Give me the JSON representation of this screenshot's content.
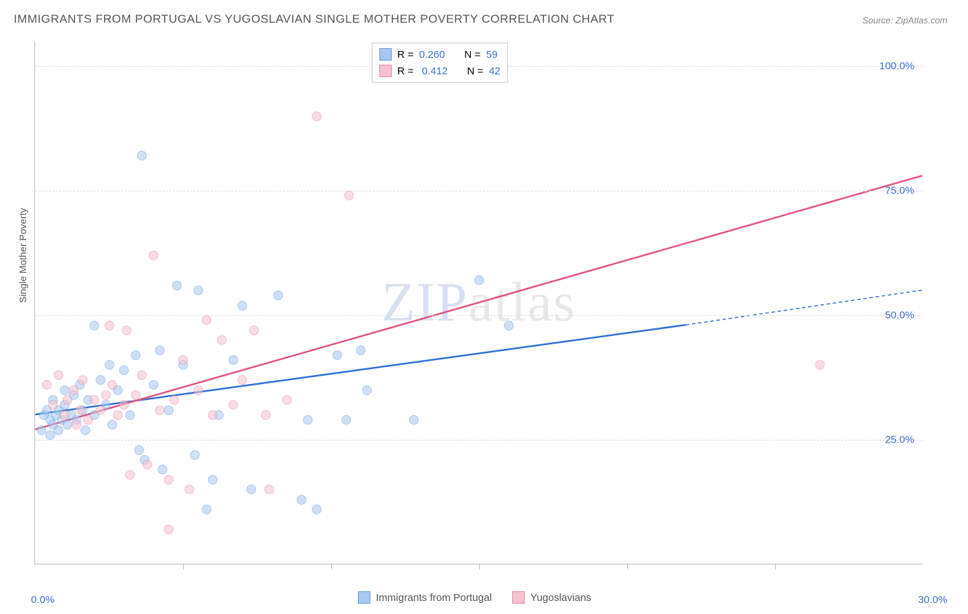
{
  "title": "IMMIGRANTS FROM PORTUGAL VS YUGOSLAVIAN SINGLE MOTHER POVERTY CORRELATION CHART",
  "source": "Source: ZipAtlas.com",
  "ylabel": "Single Mother Poverty",
  "watermark_a": "ZIP",
  "watermark_b": "atlas",
  "chart": {
    "type": "scatter",
    "xlim": [
      0,
      30
    ],
    "ylim": [
      0,
      105
    ],
    "xtick_labels": [
      "0.0%",
      "30.0%"
    ],
    "xtick_pos": [
      0,
      30
    ],
    "ytick_labels": [
      "25.0%",
      "50.0%",
      "75.0%",
      "100.0%"
    ],
    "ytick_pos": [
      25,
      50,
      75,
      100
    ],
    "xticks_minor": [
      5,
      10,
      15,
      20,
      25
    ],
    "grid_color": "#dddddd",
    "axis_color": "#bbbbbb",
    "background_color": "#ffffff",
    "series": [
      {
        "name": "Immigrants from Portugal",
        "color_fill": "#a8c8f0",
        "color_stroke": "#6a9ee0",
        "line_color": "#2f6fd6",
        "marker_radius": 7,
        "marker_opacity": 0.55,
        "R": "0.260",
        "N": "59",
        "trend": {
          "x1": 0,
          "y1": 30,
          "x2": 22,
          "y2": 48,
          "x2_ext": 30,
          "y2_ext": 55
        },
        "points": [
          [
            0.2,
            27
          ],
          [
            0.3,
            30
          ],
          [
            0.4,
            31
          ],
          [
            0.5,
            26
          ],
          [
            0.5,
            29
          ],
          [
            0.6,
            28
          ],
          [
            0.6,
            33
          ],
          [
            0.7,
            30
          ],
          [
            0.8,
            27
          ],
          [
            0.8,
            31
          ],
          [
            0.9,
            29
          ],
          [
            1.0,
            32
          ],
          [
            1.0,
            35
          ],
          [
            1.1,
            28
          ],
          [
            1.2,
            30
          ],
          [
            1.3,
            34
          ],
          [
            1.4,
            29
          ],
          [
            1.5,
            36
          ],
          [
            1.6,
            31
          ],
          [
            1.7,
            27
          ],
          [
            1.8,
            33
          ],
          [
            2.0,
            30
          ],
          [
            2.2,
            37
          ],
          [
            2.4,
            32
          ],
          [
            2.5,
            40
          ],
          [
            2.6,
            28
          ],
          [
            2.8,
            35
          ],
          [
            2.0,
            48
          ],
          [
            3.0,
            39
          ],
          [
            3.2,
            30
          ],
          [
            3.4,
            42
          ],
          [
            3.5,
            23
          ],
          [
            3.7,
            21
          ],
          [
            4.0,
            36
          ],
          [
            4.2,
            43
          ],
          [
            4.3,
            19
          ],
          [
            4.5,
            31
          ],
          [
            4.8,
            56
          ],
          [
            5.0,
            40
          ],
          [
            5.4,
            22
          ],
          [
            5.5,
            55
          ],
          [
            5.8,
            11
          ],
          [
            6.0,
            17
          ],
          [
            6.2,
            30
          ],
          [
            6.7,
            41
          ],
          [
            7.0,
            52
          ],
          [
            7.3,
            15
          ],
          [
            8.2,
            54
          ],
          [
            9.0,
            13
          ],
          [
            9.2,
            29
          ],
          [
            9.5,
            11
          ],
          [
            10.2,
            42
          ],
          [
            10.5,
            29
          ],
          [
            11.0,
            43
          ],
          [
            11.2,
            35
          ],
          [
            12.8,
            29
          ],
          [
            15.0,
            57
          ],
          [
            16.0,
            48
          ],
          [
            3.6,
            82
          ]
        ]
      },
      {
        "name": "Yugoslavians",
        "color_fill": "#f5c2cf",
        "color_stroke": "#e88aa5",
        "line_color": "#e05580",
        "marker_radius": 7,
        "marker_opacity": 0.55,
        "R": "0.412",
        "N": "42",
        "trend": {
          "x1": 0,
          "y1": 27,
          "x2": 30,
          "y2": 78,
          "x2_ext": 30,
          "y2_ext": 78
        },
        "points": [
          [
            0.4,
            36
          ],
          [
            0.6,
            32
          ],
          [
            0.8,
            38
          ],
          [
            1.0,
            30
          ],
          [
            1.1,
            33
          ],
          [
            1.3,
            35
          ],
          [
            1.5,
            31
          ],
          [
            1.6,
            37
          ],
          [
            1.8,
            29
          ],
          [
            2.0,
            33
          ],
          [
            2.2,
            31
          ],
          [
            2.4,
            34
          ],
          [
            2.6,
            36
          ],
          [
            2.8,
            30
          ],
          [
            3.0,
            32
          ],
          [
            3.2,
            18
          ],
          [
            3.4,
            34
          ],
          [
            3.6,
            38
          ],
          [
            3.8,
            20
          ],
          [
            4.0,
            62
          ],
          [
            4.2,
            31
          ],
          [
            4.5,
            17
          ],
          [
            4.7,
            33
          ],
          [
            5.0,
            41
          ],
          [
            5.2,
            15
          ],
          [
            5.5,
            35
          ],
          [
            5.8,
            49
          ],
          [
            6.0,
            30
          ],
          [
            6.3,
            45
          ],
          [
            6.7,
            32
          ],
          [
            7.0,
            37
          ],
          [
            7.4,
            47
          ],
          [
            7.8,
            30
          ],
          [
            7.9,
            15
          ],
          [
            8.5,
            33
          ],
          [
            9.5,
            90
          ],
          [
            10.6,
            74
          ],
          [
            4.5,
            7
          ],
          [
            2.5,
            48
          ],
          [
            3.1,
            47
          ],
          [
            26.5,
            40
          ],
          [
            1.4,
            28
          ]
        ]
      }
    ]
  },
  "legend_bottom": [
    {
      "label": "Immigrants from Portugal",
      "fill": "#a8c8f0",
      "stroke": "#6a9ee0"
    },
    {
      "label": "Yugoslavians",
      "fill": "#f5c2cf",
      "stroke": "#e88aa5"
    }
  ],
  "legend_top_labels": {
    "R": "R =",
    "N": "N ="
  }
}
